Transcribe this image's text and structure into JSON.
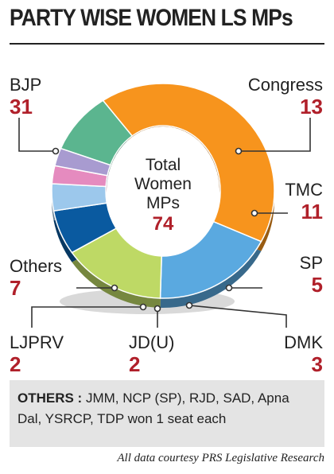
{
  "title": "PARTY WISE  WOMEN LS MPs",
  "accent_color": "#b0202a",
  "center": {
    "line1": "Total",
    "line2": "Women",
    "line3": "MPs",
    "total": "74"
  },
  "chart_data": {
    "type": "pie",
    "title": "PARTY WISE  WOMEN LS MPs",
    "donut": true,
    "total": 74,
    "categories": [
      "BJP",
      "Congress",
      "TMC",
      "SP",
      "DMK",
      "JD(U)",
      "LJPRV",
      "Others"
    ],
    "values": [
      31,
      13,
      11,
      5,
      3,
      2,
      2,
      7
    ],
    "colors": [
      "#f7941d",
      "#5aa9e0",
      "#bed965",
      "#0a5aa0",
      "#9cc8ec",
      "#e58bbf",
      "#a89bd0",
      "#5bb58f"
    ],
    "value_labels": [
      "31",
      "13",
      "11",
      "5",
      "3",
      "2",
      "2",
      "7"
    ]
  },
  "others_note": {
    "heading": "OTHERS :",
    "text": " JMM, NCP (SP), RJD, SAD, Apna Dal, YSRCP, TDP won 1 seat each"
  },
  "credit": "All data courtesy PRS Legislative Research"
}
